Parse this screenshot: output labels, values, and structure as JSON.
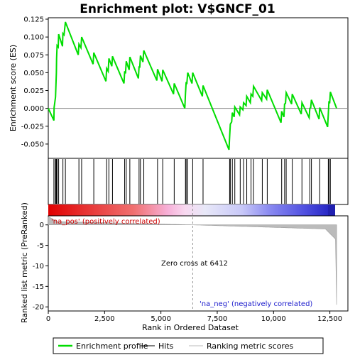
{
  "chart_data": {
    "type": "line",
    "title": "Enrichment plot: V$GNCF_01",
    "top_panel": {
      "ylabel": "Enrichment score (ES)",
      "ylim": [
        -0.07,
        0.127
      ],
      "yticks": [
        -0.05,
        -0.025,
        0.0,
        0.025,
        0.05,
        0.075,
        0.1,
        0.125
      ],
      "ytick_labels": [
        "-0.050",
        "-0.025",
        "0.000",
        "0.025",
        "0.050",
        "0.075",
        "0.100",
        "0.125"
      ],
      "series": [
        {
          "name": "Enrichment profile",
          "color": "#00dd00",
          "points": [
            [
              0,
              0.0
            ],
            [
              250,
              -0.017
            ],
            [
              260,
              0.001
            ],
            [
              320,
              0.016
            ],
            [
              340,
              0.033
            ],
            [
              360,
              0.05
            ],
            [
              370,
              0.07
            ],
            [
              390,
              0.088
            ],
            [
              440,
              0.086
            ],
            [
              460,
              0.104
            ],
            [
              630,
              0.087
            ],
            [
              650,
              0.105
            ],
            [
              700,
              0.103
            ],
            [
              760,
              0.121
            ],
            [
              1330,
              0.075
            ],
            [
              1360,
              0.09
            ],
            [
              1450,
              0.085
            ],
            [
              1480,
              0.1
            ],
            [
              1990,
              0.062
            ],
            [
              2020,
              0.078
            ],
            [
              2560,
              0.038
            ],
            [
              2590,
              0.056
            ],
            [
              2660,
              0.052
            ],
            [
              2690,
              0.07
            ],
            [
              2820,
              0.059
            ],
            [
              2850,
              0.073
            ],
            [
              3360,
              0.035
            ],
            [
              3390,
              0.052
            ],
            [
              3430,
              0.049
            ],
            [
              3460,
              0.066
            ],
            [
              3590,
              0.054
            ],
            [
              3620,
              0.072
            ],
            [
              4000,
              0.042
            ],
            [
              4030,
              0.059
            ],
            [
              4060,
              0.057
            ],
            [
              4090,
              0.074
            ],
            [
              4200,
              0.065
            ],
            [
              4240,
              0.081
            ],
            [
              4820,
              0.039
            ],
            [
              4850,
              0.055
            ],
            [
              5050,
              0.038
            ],
            [
              5080,
              0.054
            ],
            [
              5560,
              0.02
            ],
            [
              5590,
              0.035
            ],
            [
              6060,
              0.0
            ],
            [
              6090,
              0.02
            ],
            [
              6120,
              0.037
            ],
            [
              6150,
              0.034
            ],
            [
              6190,
              0.05
            ],
            [
              6380,
              0.035
            ],
            [
              6410,
              0.05
            ],
            [
              6840,
              0.017
            ],
            [
              6870,
              0.032
            ],
            [
              8020,
              -0.058
            ],
            [
              8050,
              -0.04
            ],
            [
              8080,
              -0.022
            ],
            [
              8140,
              -0.019
            ],
            [
              8170,
              -0.006
            ],
            [
              8250,
              -0.012
            ],
            [
              8280,
              0.002
            ],
            [
              8490,
              -0.009
            ],
            [
              8520,
              0.002
            ],
            [
              8640,
              -0.002
            ],
            [
              8670,
              0.008
            ],
            [
              8780,
              0.004
            ],
            [
              8810,
              0.017
            ],
            [
              8970,
              0.008
            ],
            [
              9000,
              0.02
            ],
            [
              9080,
              0.017
            ],
            [
              9110,
              0.031
            ],
            [
              9470,
              0.011
            ],
            [
              9500,
              0.022
            ],
            [
              9690,
              0.013
            ],
            [
              9720,
              0.026
            ],
            [
              10330,
              -0.02
            ],
            [
              10360,
              -0.004
            ],
            [
              10460,
              -0.012
            ],
            [
              10490,
              0.006
            ],
            [
              10530,
              0.007
            ],
            [
              10560,
              0.022
            ],
            [
              10800,
              0.006
            ],
            [
              10830,
              0.02
            ],
            [
              11230,
              -0.008
            ],
            [
              11260,
              0.008
            ],
            [
              11580,
              -0.013
            ],
            [
              11610,
              0.0
            ],
            [
              11650,
              0.001
            ],
            [
              11680,
              0.012
            ],
            [
              12020,
              -0.015
            ],
            [
              12050,
              0.001
            ],
            [
              12400,
              -0.026
            ],
            [
              12430,
              -0.008
            ],
            [
              12460,
              0.01
            ],
            [
              12490,
              0.007
            ],
            [
              12520,
              0.023
            ],
            [
              12800,
              0.0
            ]
          ]
        }
      ]
    },
    "hits_panel": {
      "hit_positions": [
        250,
        320,
        340,
        360,
        370,
        390,
        460,
        650,
        760,
        1360,
        1480,
        2020,
        2590,
        2690,
        2850,
        3390,
        3460,
        3620,
        4030,
        4090,
        4240,
        4850,
        5080,
        5590,
        6090,
        6120,
        6190,
        6410,
        6870,
        8050,
        8080,
        8170,
        8280,
        8520,
        8670,
        8810,
        9000,
        9110,
        9500,
        9720,
        10360,
        10490,
        10560,
        10830,
        11260,
        11610,
        11680,
        12050,
        12430,
        12460,
        12520
      ]
    },
    "metric_panel": {
      "ylabel": "Ranked list metric (PreRanked)",
      "ylim": [
        -21,
        2.2
      ],
      "yticks": [
        0,
        -5,
        -10,
        -15,
        -20
      ],
      "ytick_labels": [
        "0",
        "-5",
        "-10",
        "-15",
        "-20"
      ],
      "xlabel": "Rank in Ordered Dataset",
      "xticks": [
        0,
        2500,
        5000,
        7500,
        10000,
        12500
      ],
      "xtick_labels": [
        "0",
        "2,500",
        "5,000",
        "7,500",
        "10,000",
        "12,500"
      ],
      "xlim": [
        0,
        13300
      ],
      "zero_cross": 6412,
      "zero_cross_label": "Zero cross at 6412",
      "pos_label": "'na_pos' (positively correlated)",
      "neg_label": "'na_neg' (negatively correlated)",
      "color_pos": "#cc0000",
      "color_neg": "#1a1acc"
    },
    "legend": [
      {
        "label": "Enrichment profile",
        "color": "#00dd00"
      },
      {
        "label": "Hits",
        "color": "#000000"
      },
      {
        "label": "Ranking metric scores",
        "color": "#bbbbbb"
      }
    ]
  }
}
